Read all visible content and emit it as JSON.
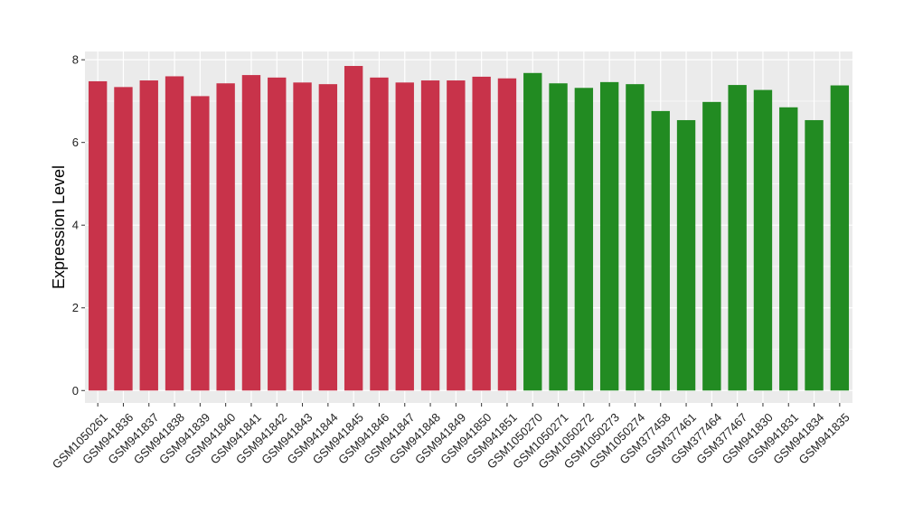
{
  "chart_data": {
    "type": "bar",
    "title": "",
    "xlabel": "",
    "ylabel": "Expression Level",
    "ylim": [
      -0.3,
      8.2
    ],
    "yticks": [
      0,
      2,
      4,
      6,
      8
    ],
    "grid": true,
    "legend": "none",
    "panel_background": "#ebebeb",
    "grid_color": "#ffffff",
    "categories": [
      "GSM1050261",
      "GSM941836",
      "GSM941837",
      "GSM941838",
      "GSM941839",
      "GSM941840",
      "GSM941841",
      "GSM941842",
      "GSM941843",
      "GSM941844",
      "GSM941845",
      "GSM941846",
      "GSM941847",
      "GSM941848",
      "GSM941849",
      "GSM941850",
      "GSM941851",
      "GSM1050270",
      "GSM1050271",
      "GSM1050272",
      "GSM1050273",
      "GSM1050274",
      "GSM377458",
      "GSM377461",
      "GSM377464",
      "GSM377467",
      "GSM941830",
      "GSM941831",
      "GSM941834",
      "GSM941835"
    ],
    "values": [
      7.48,
      7.34,
      7.5,
      7.6,
      7.12,
      7.43,
      7.63,
      7.57,
      7.45,
      7.41,
      7.85,
      7.57,
      7.45,
      7.5,
      7.5,
      7.59,
      7.55,
      7.68,
      7.43,
      7.32,
      7.46,
      7.41,
      6.76,
      6.54,
      6.98,
      7.39,
      7.27,
      6.85,
      6.54,
      7.38
    ],
    "colors": [
      "#c8334a",
      "#c8334a",
      "#c8334a",
      "#c8334a",
      "#c8334a",
      "#c8334a",
      "#c8334a",
      "#c8334a",
      "#c8334a",
      "#c8334a",
      "#c8334a",
      "#c8334a",
      "#c8334a",
      "#c8334a",
      "#c8334a",
      "#c8334a",
      "#c8334a",
      "#228b22",
      "#228b22",
      "#228b22",
      "#228b22",
      "#228b22",
      "#228b22",
      "#228b22",
      "#228b22",
      "#228b22",
      "#228b22",
      "#228b22",
      "#228b22",
      "#228b22"
    ]
  }
}
